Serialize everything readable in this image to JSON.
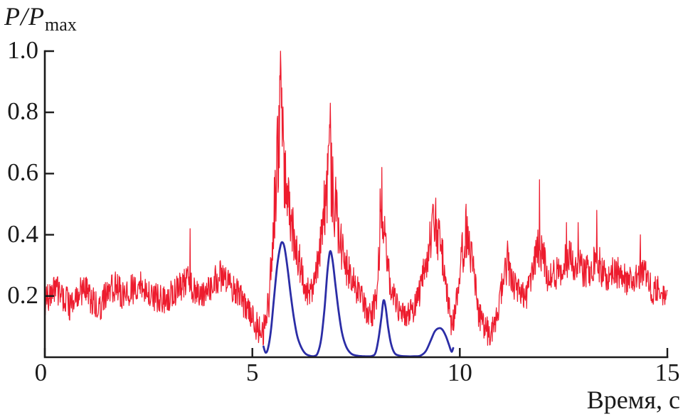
{
  "figure": {
    "ylabel_main": "P/P",
    "ylabel_sub": "max",
    "xlabel": "Время, с",
    "axis_color": "#1a1a1a",
    "text_color": "#1a1a1a"
  },
  "chart_data": {
    "type": "line",
    "title": "",
    "xlabel": "Время, с",
    "ylabel": "P/Pmax",
    "xlim": [
      0,
      15
    ],
    "ylim": [
      0,
      1.0
    ],
    "xticks": [
      0,
      5,
      10,
      15
    ],
    "yticks": [
      0.2,
      0.4,
      0.6,
      0.8,
      1.0
    ],
    "grid": false,
    "legend_position": "none",
    "series": [
      {
        "name": "raw-pressure-signal",
        "color": "#ed1c2e",
        "style": "noisy",
        "line_width": 1.25,
        "mean_points": [
          [
            0,
            0.17
          ],
          [
            0.15,
            0.21
          ],
          [
            0.3,
            0.22
          ],
          [
            0.5,
            0.19
          ],
          [
            0.65,
            0.16
          ],
          [
            0.8,
            0.21
          ],
          [
            1,
            0.22
          ],
          [
            1.15,
            0.18
          ],
          [
            1.3,
            0.16
          ],
          [
            1.5,
            0.21
          ],
          [
            1.7,
            0.23
          ],
          [
            1.9,
            0.2
          ],
          [
            2.1,
            0.22
          ],
          [
            2.3,
            0.24
          ],
          [
            2.5,
            0.21
          ],
          [
            2.7,
            0.19
          ],
          [
            2.9,
            0.18
          ],
          [
            3.1,
            0.21
          ],
          [
            3.3,
            0.23
          ],
          [
            3.45,
            0.26
          ],
          [
            3.6,
            0.21
          ],
          [
            3.8,
            0.2
          ],
          [
            4,
            0.23
          ],
          [
            4.15,
            0.26
          ],
          [
            4.3,
            0.27
          ],
          [
            4.5,
            0.22
          ],
          [
            4.7,
            0.2
          ],
          [
            4.9,
            0.15
          ],
          [
            5.1,
            0.1
          ],
          [
            5.25,
            0.08
          ],
          [
            5.4,
            0.18
          ],
          [
            5.5,
            0.42
          ],
          [
            5.6,
            0.62
          ],
          [
            5.68,
            0.8
          ],
          [
            5.75,
            0.65
          ],
          [
            5.85,
            0.52
          ],
          [
            5.95,
            0.42
          ],
          [
            6.1,
            0.33
          ],
          [
            6.25,
            0.24
          ],
          [
            6.4,
            0.2
          ],
          [
            6.55,
            0.28
          ],
          [
            6.7,
            0.45
          ],
          [
            6.8,
            0.56
          ],
          [
            6.88,
            0.62
          ],
          [
            6.97,
            0.52
          ],
          [
            7.1,
            0.4
          ],
          [
            7.25,
            0.3
          ],
          [
            7.45,
            0.24
          ],
          [
            7.65,
            0.18
          ],
          [
            7.85,
            0.13
          ],
          [
            8,
            0.2
          ],
          [
            8.1,
            0.45
          ],
          [
            8.18,
            0.4
          ],
          [
            8.3,
            0.26
          ],
          [
            8.45,
            0.17
          ],
          [
            8.6,
            0.13
          ],
          [
            8.75,
            0.13
          ],
          [
            8.9,
            0.16
          ],
          [
            9.05,
            0.22
          ],
          [
            9.2,
            0.32
          ],
          [
            9.35,
            0.42
          ],
          [
            9.5,
            0.4
          ],
          [
            9.62,
            0.3
          ],
          [
            9.75,
            0.15
          ],
          [
            9.82,
            0.1
          ],
          [
            9.92,
            0.18
          ],
          [
            10.05,
            0.33
          ],
          [
            10.17,
            0.42
          ],
          [
            10.3,
            0.32
          ],
          [
            10.45,
            0.15
          ],
          [
            10.6,
            0.08
          ],
          [
            10.75,
            0.09
          ],
          [
            10.9,
            0.12
          ],
          [
            11.05,
            0.27
          ],
          [
            11.15,
            0.3
          ],
          [
            11.3,
            0.24
          ],
          [
            11.45,
            0.2
          ],
          [
            11.6,
            0.2
          ],
          [
            11.75,
            0.27
          ],
          [
            11.9,
            0.38
          ],
          [
            12,
            0.33
          ],
          [
            12.15,
            0.25
          ],
          [
            12.3,
            0.27
          ],
          [
            12.45,
            0.3
          ],
          [
            12.6,
            0.32
          ],
          [
            12.75,
            0.3
          ],
          [
            12.9,
            0.3
          ],
          [
            13.05,
            0.28
          ],
          [
            13.2,
            0.3
          ],
          [
            13.3,
            0.33
          ],
          [
            13.45,
            0.28
          ],
          [
            13.6,
            0.26
          ],
          [
            13.75,
            0.28
          ],
          [
            13.9,
            0.26
          ],
          [
            14.05,
            0.25
          ],
          [
            14.2,
            0.27
          ],
          [
            14.35,
            0.28
          ],
          [
            14.5,
            0.26
          ],
          [
            14.65,
            0.22
          ],
          [
            14.8,
            0.22
          ],
          [
            15,
            0.22
          ]
        ],
        "spikes": [
          [
            3.5,
            0.42
          ],
          [
            5.6,
            0.78
          ],
          [
            5.66,
            0.92
          ],
          [
            5.68,
            1.0
          ],
          [
            5.71,
            0.88
          ],
          [
            6.86,
            0.76
          ],
          [
            6.88,
            0.83
          ],
          [
            6.91,
            0.7
          ],
          [
            8.08,
            0.55
          ],
          [
            8.12,
            0.62
          ],
          [
            9.35,
            0.5
          ],
          [
            9.42,
            0.52
          ],
          [
            10.15,
            0.5
          ],
          [
            11.15,
            0.38
          ],
          [
            11.92,
            0.58
          ],
          [
            12.57,
            0.44
          ],
          [
            12.85,
            0.44
          ],
          [
            13.3,
            0.48
          ],
          [
            14.35,
            0.4
          ]
        ],
        "noise": {
          "seed": 42,
          "step": 0.01,
          "base_amplitude": 0.05,
          "peak_amplitude_scale": 0.26,
          "peak_threshold": 0.25
        }
      },
      {
        "name": "smoothed-pressure-signal",
        "color": "#2b2da6",
        "style": "smooth",
        "line_width": 2.8,
        "points": [
          [
            5.27,
            0.035
          ],
          [
            5.32,
            0.015
          ],
          [
            5.38,
            0.03
          ],
          [
            5.45,
            0.09
          ],
          [
            5.52,
            0.19
          ],
          [
            5.6,
            0.3
          ],
          [
            5.68,
            0.365
          ],
          [
            5.73,
            0.375
          ],
          [
            5.78,
            0.355
          ],
          [
            5.85,
            0.29
          ],
          [
            5.92,
            0.21
          ],
          [
            6,
            0.13
          ],
          [
            6.08,
            0.07
          ],
          [
            6.17,
            0.035
          ],
          [
            6.27,
            0.013
          ],
          [
            6.38,
            0.005
          ],
          [
            6.5,
            0.004
          ],
          [
            6.58,
            0.015
          ],
          [
            6.66,
            0.06
          ],
          [
            6.74,
            0.16
          ],
          [
            6.81,
            0.28
          ],
          [
            6.87,
            0.345
          ],
          [
            6.93,
            0.32
          ],
          [
            7,
            0.24
          ],
          [
            7.08,
            0.15
          ],
          [
            7.16,
            0.08
          ],
          [
            7.26,
            0.035
          ],
          [
            7.38,
            0.012
          ],
          [
            7.52,
            0.005
          ],
          [
            7.7,
            0.003
          ],
          [
            7.88,
            0.004
          ],
          [
            7.97,
            0.015
          ],
          [
            8.04,
            0.06
          ],
          [
            8.11,
            0.13
          ],
          [
            8.16,
            0.185
          ],
          [
            8.21,
            0.165
          ],
          [
            8.27,
            0.1
          ],
          [
            8.34,
            0.045
          ],
          [
            8.42,
            0.015
          ],
          [
            8.52,
            0.006
          ],
          [
            8.7,
            0.003
          ],
          [
            8.9,
            0.003
          ],
          [
            9.05,
            0.005
          ],
          [
            9.18,
            0.02
          ],
          [
            9.3,
            0.055
          ],
          [
            9.4,
            0.085
          ],
          [
            9.5,
            0.095
          ],
          [
            9.58,
            0.09
          ],
          [
            9.66,
            0.07
          ],
          [
            9.74,
            0.04
          ],
          [
            9.8,
            0.018
          ],
          [
            9.84,
            0.03
          ]
        ]
      }
    ]
  }
}
